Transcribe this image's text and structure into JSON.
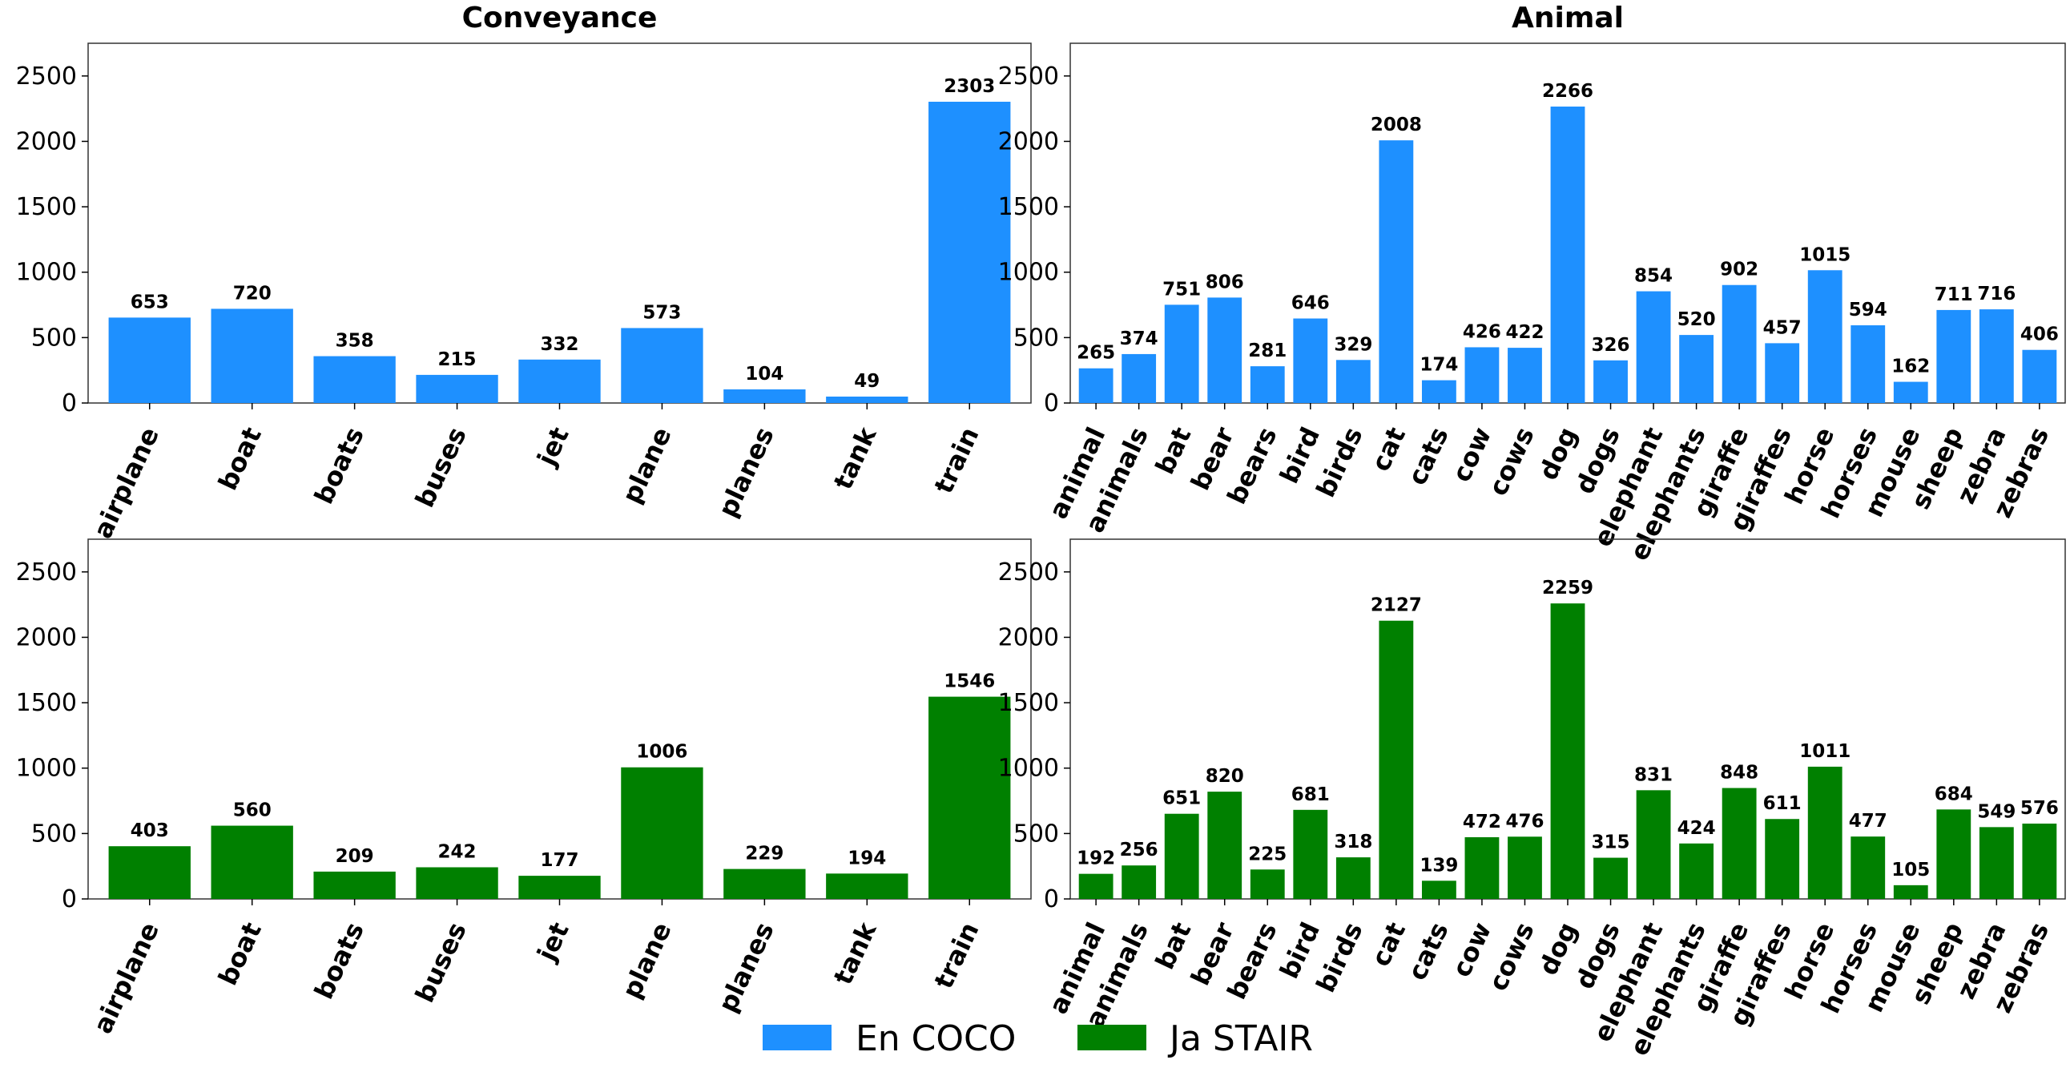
{
  "colors": {
    "en": "#1e90ff",
    "ja": "#008000"
  },
  "legend": [
    {
      "label": "En COCO",
      "color": "#1e90ff"
    },
    {
      "label": "Ja STAIR",
      "color": "#008000"
    }
  ],
  "chart_data": [
    {
      "type": "bar",
      "title": "Conveyance",
      "series": [
        {
          "name": "En COCO",
          "values": [
            653,
            720,
            358,
            215,
            332,
            573,
            104,
            49,
            2303
          ]
        }
      ],
      "categories": [
        "airplane",
        "boat",
        "boats",
        "buses",
        "jet",
        "plane",
        "planes",
        "tank",
        "train"
      ],
      "ylim": [
        0,
        2750
      ],
      "yticks": [
        0,
        500,
        1000,
        1500,
        2000,
        2500
      ],
      "color": "#1e90ff"
    },
    {
      "type": "bar",
      "title": "Animal",
      "series": [
        {
          "name": "En COCO",
          "values": [
            265,
            374,
            751,
            806,
            281,
            646,
            329,
            2008,
            174,
            426,
            422,
            2266,
            326,
            854,
            520,
            902,
            457,
            1015,
            594,
            162,
            711,
            716,
            406
          ]
        }
      ],
      "categories": [
        "animal",
        "animals",
        "bat",
        "bear",
        "bears",
        "bird",
        "birds",
        "cat",
        "cats",
        "cow",
        "cows",
        "dog",
        "dogs",
        "elephant",
        "elephants",
        "giraffe",
        "giraffes",
        "horse",
        "horses",
        "mouse",
        "sheep",
        "zebra",
        "zebras"
      ],
      "ylim": [
        0,
        2750
      ],
      "yticks": [
        0,
        500,
        1000,
        1500,
        2000,
        2500
      ],
      "color": "#1e90ff"
    },
    {
      "type": "bar",
      "title": "",
      "series": [
        {
          "name": "Ja STAIR",
          "values": [
            403,
            560,
            209,
            242,
            177,
            1006,
            229,
            194,
            1546
          ]
        }
      ],
      "categories": [
        "airplane",
        "boat",
        "boats",
        "buses",
        "jet",
        "plane",
        "planes",
        "tank",
        "train"
      ],
      "ylim": [
        0,
        2750
      ],
      "yticks": [
        0,
        500,
        1000,
        1500,
        2000,
        2500
      ],
      "color": "#008000"
    },
    {
      "type": "bar",
      "title": "",
      "series": [
        {
          "name": "Ja STAIR",
          "values": [
            192,
            256,
            651,
            820,
            225,
            681,
            318,
            2127,
            139,
            472,
            476,
            2259,
            315,
            831,
            424,
            848,
            611,
            1011,
            477,
            105,
            684,
            549,
            576
          ]
        }
      ],
      "categories": [
        "animal",
        "animals",
        "bat",
        "bear",
        "bears",
        "bird",
        "birds",
        "cat",
        "cats",
        "cow",
        "cows",
        "dog",
        "dogs",
        "elephant",
        "elephants",
        "giraffe",
        "giraffes",
        "horse",
        "horses",
        "mouse",
        "sheep",
        "zebra",
        "zebras"
      ],
      "ylim": [
        0,
        2750
      ],
      "yticks": [
        0,
        500,
        1000,
        1500,
        2000,
        2500
      ],
      "color": "#008000"
    }
  ]
}
